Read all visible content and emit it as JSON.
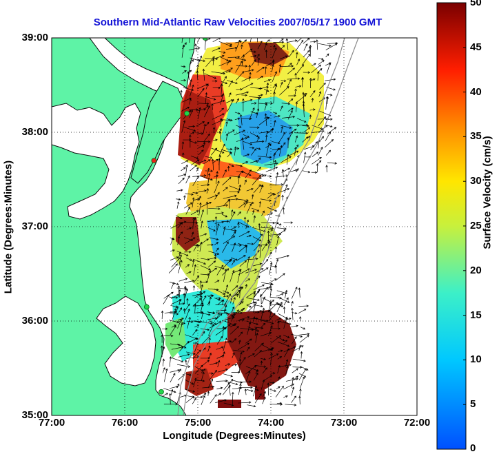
{
  "title": "Southern Mid-Atlantic Raw Velocities 2007/05/17 1900 GMT",
  "axes": {
    "xlabel": "Longitude (Degrees:Minutes)",
    "ylabel": "Latitude (Degrees:Minutes)",
    "xticks": [
      "77:00",
      "76:00",
      "75:00",
      "74:00",
      "73:00",
      "72:00"
    ],
    "yticks": [
      "39:00",
      "38:00",
      "37:00",
      "36:00",
      "35:00"
    ],
    "xlim": [
      -77,
      -72
    ],
    "ylim": [
      35,
      39
    ],
    "grid": true
  },
  "colorbar": {
    "label": "Surface Velocity (cm/s)",
    "ticks": [
      "50",
      "45",
      "40",
      "35",
      "30",
      "25",
      "20",
      "15",
      "10",
      "5",
      "0"
    ],
    "min": 0,
    "max": 50
  },
  "colors": {
    "land": "#5ef3a6",
    "title": "#1313d6",
    "station_active": "#21d44a",
    "station_inactive": "#e8231a"
  },
  "stations": [
    {
      "lon": -74.9,
      "lat": 39.0,
      "status": "active"
    },
    {
      "lon": -75.15,
      "lat": 38.2,
      "status": "active"
    },
    {
      "lon": -75.6,
      "lat": 37.7,
      "status": "inactive"
    },
    {
      "lon": -75.7,
      "lat": 36.15,
      "status": "active"
    },
    {
      "lon": -75.5,
      "lat": 35.25,
      "status": "active"
    }
  ]
}
